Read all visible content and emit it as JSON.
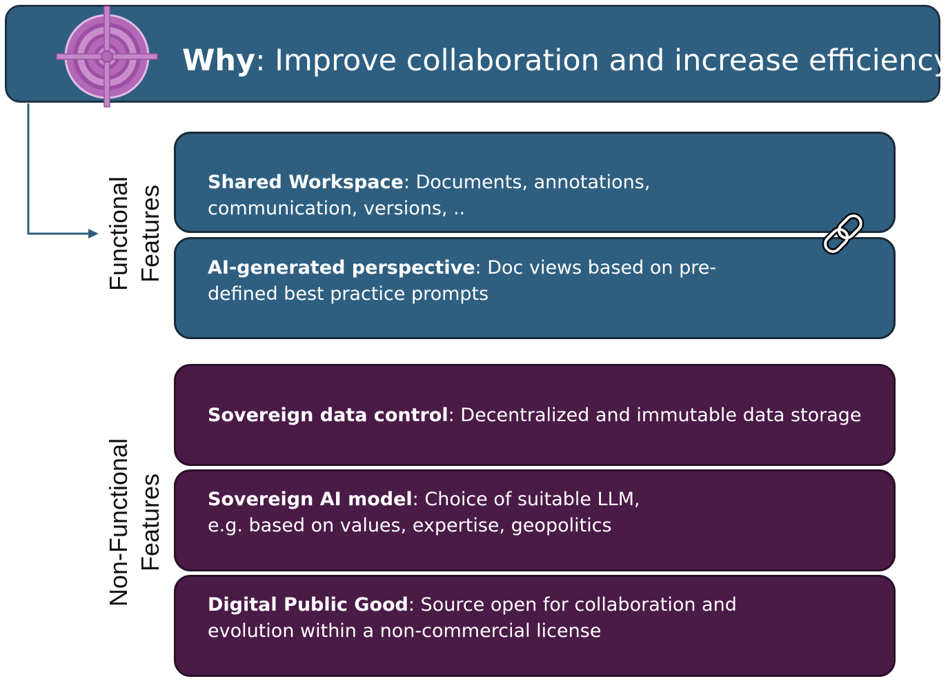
{
  "banner": {
    "title_bold": "Why",
    "title_rest": ": Improve collaboration and increase efficiency",
    "icon": "target-icon"
  },
  "sections": {
    "functional": {
      "label_line1": "Functional",
      "label_line2": "Features"
    },
    "non_functional": {
      "label_line1": "Non-Functional",
      "label_line2": "Features"
    }
  },
  "boxes": [
    {
      "bold": "Shared Workspace",
      "line1": ": Documents, annotations,",
      "line2": "communication, versions, .."
    },
    {
      "bold": "AI-generated perspective",
      "line1": ": Doc views based on pre-",
      "line2": "defined best practice prompts"
    },
    {
      "bold": "Sovereign data control",
      "line1": ": Decentralized and immutable data storage",
      "line2": ""
    },
    {
      "bold": "Sovereign AI model",
      "line1": ": Choice of suitable LLM,",
      "line2": "e.g. based on values, expertise, geopolitics"
    },
    {
      "bold": "Digital Public Good",
      "line1": ": Source open for collaboration and",
      "line2": "evolution within a non-commercial license"
    }
  ],
  "colors": {
    "functional_fill": "#2f5f80",
    "non_functional_fill": "#4a1b47",
    "icon_accent": "#c389c7"
  },
  "icons": {
    "link": "link-icon",
    "arrow": "arrow-right-icon"
  }
}
